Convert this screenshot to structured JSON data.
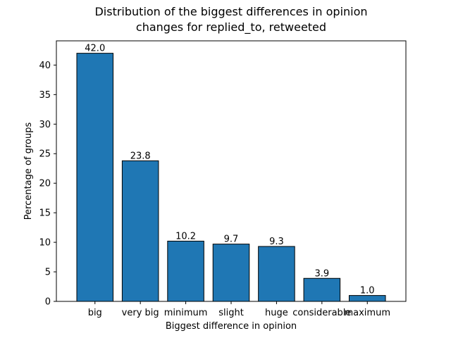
{
  "chart_data": {
    "type": "bar",
    "title_lines": [
      "Distribution of the biggest differences in opinion",
      "changes for replied_to, retweeted"
    ],
    "xlabel": "Biggest difference in opinion",
    "ylabel": "Percentage of groups",
    "categories": [
      "big",
      "very big",
      "minimum",
      "slight",
      "huge",
      "considerable",
      "maximum"
    ],
    "values": [
      42.0,
      23.8,
      10.2,
      9.7,
      9.3,
      3.9,
      1.0
    ],
    "value_labels": [
      "42.0",
      "23.8",
      "10.2",
      "9.7",
      "9.3",
      "3.9",
      "1.0"
    ],
    "ylim": [
      0,
      44.1
    ],
    "yticks": [
      0,
      5,
      10,
      15,
      20,
      25,
      30,
      35,
      40
    ],
    "ytick_labels": [
      "0",
      "5",
      "10",
      "15",
      "20",
      "25",
      "30",
      "35",
      "40"
    ],
    "bar_color": "#1f77b4",
    "edge_color": "#000000",
    "grid": false,
    "legend": "none"
  }
}
